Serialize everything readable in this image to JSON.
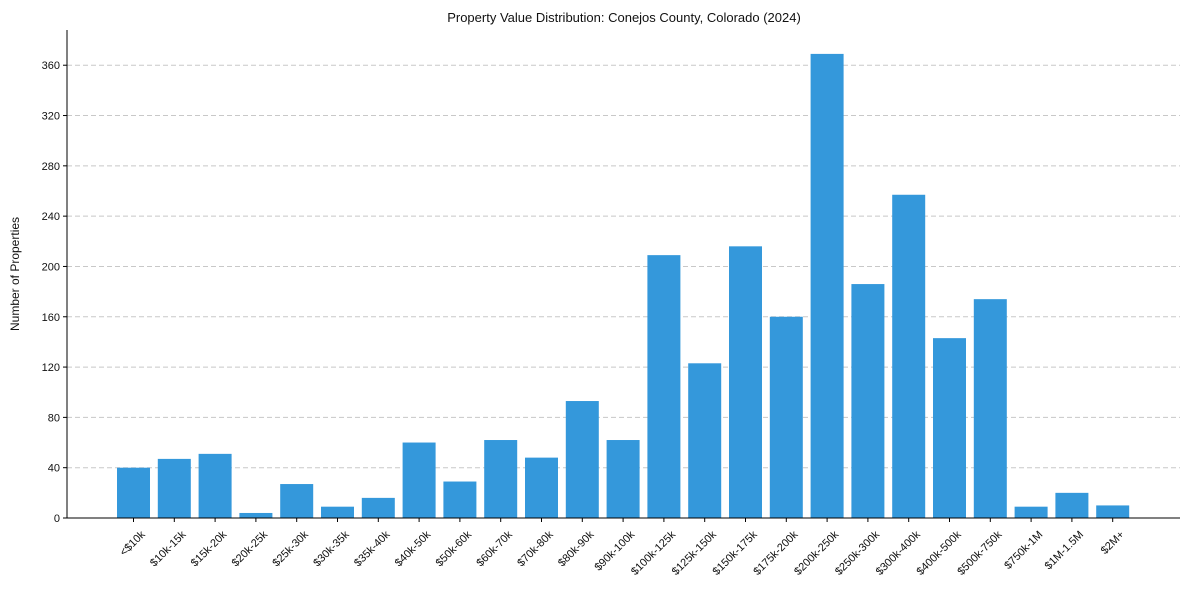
{
  "chart_data": {
    "type": "bar",
    "title": "Property Value Distribution: Conejos County, Colorado (2024)",
    "xlabel": "",
    "ylabel": "Number of Properties",
    "categories": [
      "<$10k",
      "$10k-15k",
      "$15k-20k",
      "$20k-25k",
      "$25k-30k",
      "$30k-35k",
      "$35k-40k",
      "$40k-50k",
      "$50k-60k",
      "$60k-70k",
      "$70k-80k",
      "$80k-90k",
      "$90k-100k",
      "$100k-125k",
      "$125k-150k",
      "$150k-175k",
      "$175k-200k",
      "$200k-250k",
      "$250k-300k",
      "$300k-400k",
      "$400k-500k",
      "$500k-750k",
      "$750k-1M",
      "$1M-1.5M",
      "$2M+"
    ],
    "values": [
      40,
      47,
      51,
      4,
      27,
      9,
      16,
      60,
      29,
      62,
      48,
      93,
      62,
      209,
      123,
      216,
      160,
      369,
      186,
      257,
      143,
      174,
      9,
      20,
      10
    ],
    "yticks": [
      "0",
      "40",
      "80",
      "120",
      "160",
      "200",
      "240",
      "280",
      "320",
      "360"
    ],
    "ylim": [
      0,
      388
    ],
    "grid": "y-dashed",
    "color": "#3498db"
  }
}
